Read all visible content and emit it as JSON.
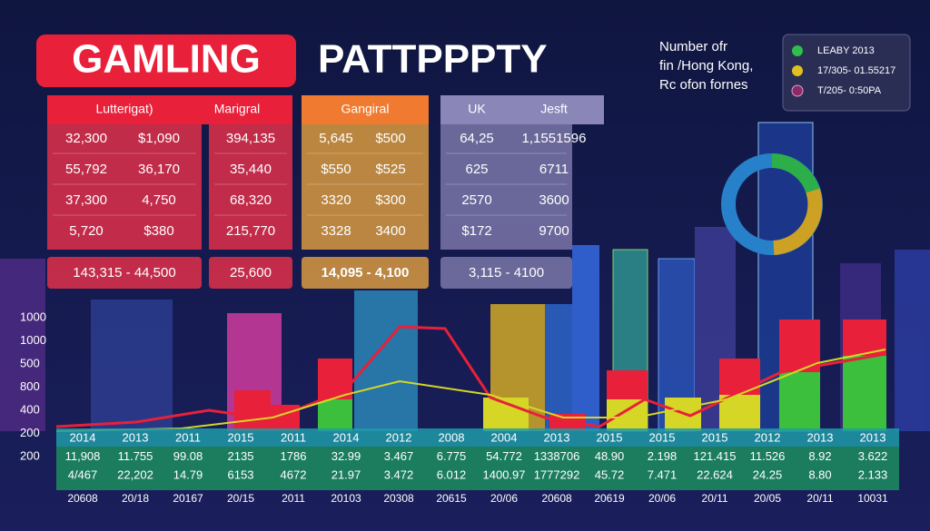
{
  "header": {
    "title_highlight": "GAMLING",
    "title": "PATTPPPTY",
    "note": [
      "Number ofr",
      "fin /Hong Kong,",
      "Rc ofon fornes"
    ]
  },
  "legend": [
    "LEABY 2013",
    "17/305- 01.55217",
    "T/205- 0:50PA"
  ],
  "tables": [
    {
      "headers": [
        "Lutterigat)"
      ],
      "rows": [
        [
          "32,300",
          "$1,090"
        ],
        [
          "55,792",
          "36,170"
        ],
        [
          "37,300",
          "4,750"
        ],
        [
          "5,720",
          "$380"
        ]
      ],
      "total": "143,315 - 44,500"
    },
    {
      "headers": [
        "Marigral"
      ],
      "rows": [
        [
          "394,135"
        ],
        [
          "35,440"
        ],
        [
          "68,320"
        ],
        [
          "215,770"
        ]
      ],
      "total": "25,600"
    },
    {
      "headers": [
        "Gangiral"
      ],
      "rows": [
        [
          "5,645",
          "$500"
        ],
        [
          "$550",
          "$525"
        ],
        [
          "3320",
          "$300"
        ],
        [
          "3328",
          "3400"
        ]
      ],
      "total": "14,095 - 4,100"
    },
    {
      "headers": [
        "UK",
        "Jesft"
      ],
      "rows": [
        [
          "64,25",
          "1,1551596"
        ],
        [
          "625",
          "6711"
        ],
        [
          "2570",
          "3600"
        ],
        [
          "$172",
          "9700"
        ]
      ],
      "total": "3,115 - 4100"
    }
  ],
  "y_axis": [
    "1000",
    "1000",
    "500",
    "800",
    "400",
    "200",
    "200"
  ],
  "band": {
    "years": [
      "2014",
      "2013",
      "2011",
      "2015",
      "2011",
      "2014",
      "2012",
      "2008",
      "2004",
      "2013",
      "2015",
      "2015",
      "2015",
      "2012",
      "2013",
      "2013"
    ],
    "row1": [
      "11,908",
      "11.755",
      "99.08",
      "2135",
      "1786",
      "32.99",
      "3.467",
      "6.775",
      "54.772",
      "1338706",
      "48.90",
      "2.198",
      "121.415",
      "11.526",
      "8.92",
      "3.622"
    ],
    "row2": [
      "4/467",
      "22,202",
      "14.79",
      "6153",
      "4672",
      "21.97",
      "3.472",
      "6.012",
      "1400.97",
      "1777292",
      "45.72",
      "7.471",
      "22.624",
      "24.25",
      "8.80",
      "2.133"
    ]
  },
  "footer_labels": [
    "20608",
    "20/18",
    "20167",
    "20/15",
    "2011",
    "20103",
    "20308",
    "20615",
    "20/06",
    "20608",
    "20619",
    "20/06",
    "20/11",
    "20/05",
    "20/11",
    "10031"
  ]
}
